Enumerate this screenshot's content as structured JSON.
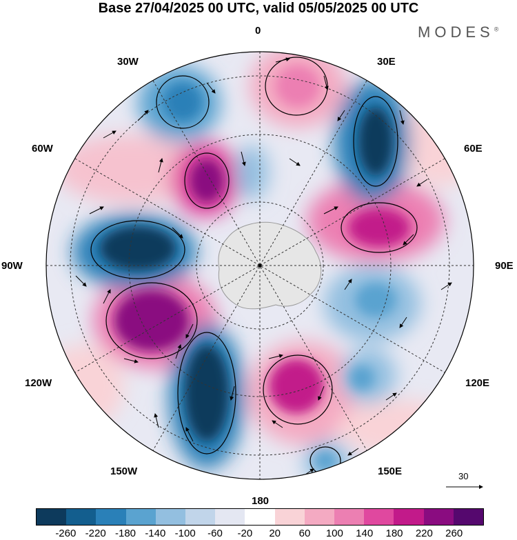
{
  "header": {
    "title": "Base 27/04/2025 00 UTC, valid 05/05/2025 00 UTC",
    "brand": "MODES",
    "brand_mark": "®"
  },
  "map": {
    "projection": "south-polar-stereographic",
    "longitude_labels": {
      "top": "0",
      "upper_left": "30W",
      "upper_right": "30E",
      "left_upper": "60W",
      "right_upper": "60E",
      "left": "90W",
      "right": "90E",
      "lower_left": "120W",
      "lower_right": "120E",
      "bottom_left": "150W",
      "bottom_right": "150E",
      "bottom": "180"
    },
    "vector_reference": "30"
  },
  "colorbar": {
    "colors": [
      "#0d3a5c",
      "#135e8e",
      "#2a80b8",
      "#5aa3d0",
      "#93bfe0",
      "#c1d5ea",
      "#e4e7f2",
      "#ffffff",
      "#f9d3d7",
      "#f4aac2",
      "#ec7fb2",
      "#e0489f",
      "#c21a8a",
      "#8a0c80",
      "#55086e"
    ],
    "tick_labels": [
      "-260",
      "-220",
      "-180",
      "-140",
      "-100",
      "-60",
      "-20",
      "20",
      "60",
      "100",
      "140",
      "180",
      "220",
      "260"
    ]
  }
}
